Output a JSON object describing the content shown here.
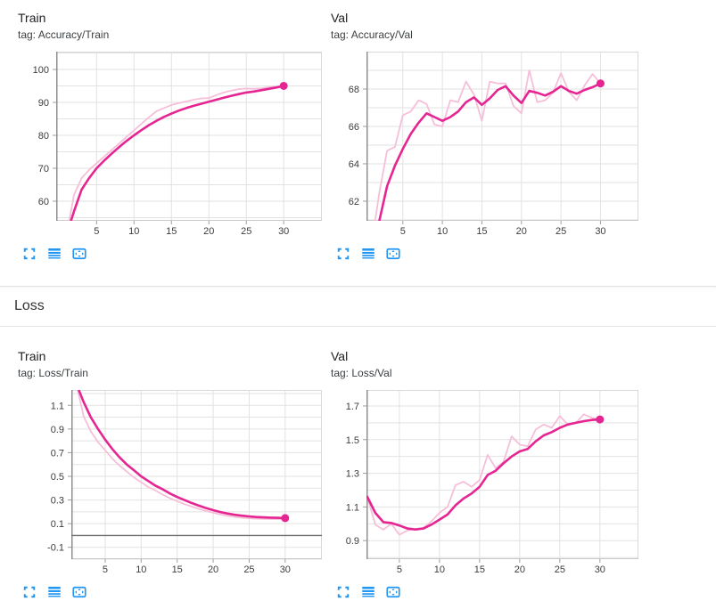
{
  "colors": {
    "accent_icon_blue": "#2196F3",
    "series_raw_pink": "#f6bfd9",
    "series_smoothed_magenta": "#e52592",
    "grid": "#e2e2e2",
    "plot_border": "#d9d9d9",
    "axis_dark": "#8f8f8f",
    "zero_line": "#6e6e6e",
    "label_text": "#3c3c3c"
  },
  "section_header": {
    "label": "Loss"
  },
  "card_toolbar": {
    "icons": [
      {
        "name": "fullscreen-icon"
      },
      {
        "name": "data-table-icon"
      },
      {
        "name": "fit-domain-icon"
      }
    ]
  },
  "chart_data": [
    {
      "title": "Train",
      "tag": "tag: Accuracy/Train",
      "type": "line",
      "x": [
        1,
        2,
        3,
        4,
        5,
        6,
        7,
        8,
        9,
        10,
        11,
        12,
        13,
        14,
        15,
        16,
        17,
        18,
        19,
        20,
        21,
        22,
        23,
        24,
        25,
        26,
        27,
        28,
        29,
        30
      ],
      "series": [
        {
          "name": "raw",
          "values": [
            50,
            62,
            67,
            69.5,
            71.5,
            73.5,
            75.5,
            77.5,
            79.5,
            81.5,
            83.5,
            85.5,
            87.3,
            88.3,
            89.2,
            89.8,
            90.3,
            90.8,
            91.2,
            91.3,
            92.2,
            93,
            93.6,
            94,
            94.2,
            94.1,
            94.3,
            94.6,
            94.8,
            95
          ]
        },
        {
          "name": "smoothed",
          "values": [
            50,
            57,
            63.5,
            67,
            70,
            72.3,
            74.4,
            76.4,
            78.3,
            80,
            81.6,
            83.1,
            84.4,
            85.6,
            86.6,
            87.5,
            88.3,
            89,
            89.6,
            90.2,
            90.8,
            91.4,
            92,
            92.5,
            93,
            93.3,
            93.7,
            94.1,
            94.5,
            95
          ]
        }
      ],
      "final_value": 95,
      "axes": {
        "x_range": [
          -0.4,
          35.1
        ],
        "x_ticks": [
          5,
          10,
          15,
          20,
          25,
          30
        ],
        "x_tick_labels": [
          "5",
          "10",
          "15",
          "20",
          "25",
          "30"
        ],
        "y_range": [
          54.05,
          105.4
        ],
        "y_tick_values": [
          60,
          70,
          80,
          90,
          100
        ],
        "y_tick_labels": [
          "60",
          "70",
          "80",
          "90",
          "100"
        ],
        "y_grid_step": 5,
        "zero_line": false,
        "grid": true,
        "legend": "none"
      }
    },
    {
      "title": "Val",
      "tag": "tag: Accuracy/Val",
      "type": "line",
      "x": [
        1,
        2,
        3,
        4,
        5,
        6,
        7,
        8,
        9,
        10,
        11,
        12,
        13,
        14,
        15,
        16,
        17,
        18,
        19,
        20,
        21,
        22,
        23,
        24,
        25,
        26,
        27,
        28,
        29,
        30
      ],
      "series": [
        {
          "name": "raw",
          "values": [
            59.5,
            62.4,
            64.7,
            64.9,
            66.6,
            66.8,
            67.4,
            67.2,
            66.1,
            66,
            67.4,
            67.3,
            68.4,
            67.7,
            66.3,
            68.4,
            68.3,
            68.3,
            67.1,
            66.7,
            69,
            67.3,
            67.4,
            67.8,
            68.85,
            67.85,
            67.4,
            68.2,
            68.8,
            68.3
          ]
        },
        {
          "name": "smoothed",
          "values": [
            59.5,
            60.9,
            62.8,
            63.9,
            64.8,
            65.6,
            66.2,
            66.7,
            66.5,
            66.3,
            66.5,
            66.8,
            67.3,
            67.55,
            67.15,
            67.5,
            67.95,
            68.15,
            67.65,
            67.25,
            67.9,
            67.8,
            67.65,
            67.85,
            68.15,
            67.9,
            67.75,
            67.95,
            68.1,
            68.3
          ]
        }
      ],
      "final_value": 68.3,
      "axes": {
        "x_range": [
          0.4,
          34.8
        ],
        "x_ticks": [
          5,
          10,
          15,
          20,
          25,
          30
        ],
        "x_tick_labels": [
          "5",
          "10",
          "15",
          "20",
          "25",
          "30"
        ],
        "y_range": [
          60.95,
          70.0
        ],
        "y_tick_values": [
          62,
          64,
          66,
          68
        ],
        "y_tick_labels": [
          "62",
          "64",
          "66",
          "68"
        ],
        "y_grid_step": 1,
        "zero_line": false,
        "grid": true,
        "legend": "none"
      }
    },
    {
      "title": "Train",
      "tag": "tag: Loss/Train",
      "type": "line",
      "x": [
        1,
        2,
        3,
        4,
        5,
        6,
        7,
        8,
        9,
        10,
        11,
        12,
        13,
        14,
        15,
        16,
        17,
        18,
        19,
        20,
        21,
        22,
        23,
        24,
        25,
        26,
        27,
        28,
        29,
        30
      ],
      "series": [
        {
          "name": "raw",
          "values": [
            1.28,
            1.01,
            0.88,
            0.79,
            0.72,
            0.65,
            0.59,
            0.54,
            0.49,
            0.45,
            0.41,
            0.38,
            0.345,
            0.315,
            0.29,
            0.265,
            0.245,
            0.225,
            0.207,
            0.192,
            0.178,
            0.166,
            0.157,
            0.15,
            0.145,
            0.142,
            0.14,
            0.139,
            0.138,
            0.14
          ]
        },
        {
          "name": "smoothed",
          "values": [
            1.28,
            1.13,
            1,
            0.9,
            0.81,
            0.73,
            0.66,
            0.6,
            0.55,
            0.5,
            0.46,
            0.42,
            0.39,
            0.355,
            0.325,
            0.3,
            0.275,
            0.252,
            0.232,
            0.214,
            0.198,
            0.185,
            0.175,
            0.167,
            0.161,
            0.156,
            0.153,
            0.151,
            0.149,
            0.147
          ]
        }
      ],
      "final_value": 0.15,
      "axes": {
        "x_range": [
          0.3,
          35.1
        ],
        "x_ticks": [
          5,
          10,
          15,
          20,
          25,
          30
        ],
        "x_tick_labels": [
          "5",
          "10",
          "15",
          "20",
          "25",
          "30"
        ],
        "y_range": [
          -0.2,
          1.23
        ],
        "y_tick_values": [
          -0.1,
          0.1,
          0.3,
          0.5,
          0.7,
          0.9,
          1.1
        ],
        "y_tick_labels": [
          "-0.1",
          "0.1",
          "0.3",
          "0.5",
          "0.7",
          "0.9",
          "1.1"
        ],
        "y_grid_step": 0.1,
        "zero_line": true,
        "grid": true,
        "legend": "none"
      }
    },
    {
      "title": "Val",
      "tag": "tag: Loss/Val",
      "type": "line",
      "x": [
        1,
        2,
        3,
        4,
        5,
        6,
        7,
        8,
        9,
        10,
        11,
        12,
        13,
        14,
        15,
        16,
        17,
        18,
        19,
        20,
        21,
        22,
        23,
        24,
        25,
        26,
        27,
        28,
        29,
        30
      ],
      "series": [
        {
          "name": "raw",
          "values": [
            1.16,
            0.995,
            0.965,
            1,
            0.935,
            0.96,
            0.97,
            0.975,
            1.015,
            1.065,
            1.1,
            1.23,
            1.25,
            1.22,
            1.26,
            1.41,
            1.33,
            1.37,
            1.52,
            1.47,
            1.46,
            1.56,
            1.59,
            1.57,
            1.64,
            1.59,
            1.6,
            1.65,
            1.63,
            1.62
          ]
        },
        {
          "name": "smoothed",
          "values": [
            1.16,
            1.065,
            1.01,
            1.005,
            0.99,
            0.972,
            0.966,
            0.972,
            0.995,
            1.025,
            1.055,
            1.11,
            1.15,
            1.18,
            1.22,
            1.29,
            1.315,
            1.36,
            1.4,
            1.43,
            1.445,
            1.49,
            1.525,
            1.545,
            1.57,
            1.59,
            1.6,
            1.61,
            1.617,
            1.62
          ]
        }
      ],
      "final_value": 1.62,
      "axes": {
        "x_range": [
          0.9,
          34.8
        ],
        "x_ticks": [
          5,
          10,
          15,
          20,
          25,
          30
        ],
        "x_tick_labels": [
          "5",
          "10",
          "15",
          "20",
          "25",
          "30"
        ],
        "y_range": [
          0.79,
          1.795
        ],
        "y_tick_values": [
          0.9,
          1.1,
          1.3,
          1.5,
          1.7
        ],
        "y_tick_labels": [
          "0.9",
          "1.1",
          "1.3",
          "1.5",
          "1.7"
        ],
        "y_grid_step": 0.1,
        "zero_line": false,
        "grid": true,
        "legend": "none"
      }
    }
  ]
}
